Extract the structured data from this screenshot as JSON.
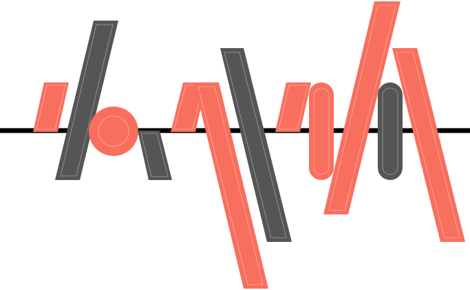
{
  "colors": {
    "background": "#ffffff",
    "baseline": "#000000",
    "coral": "#f96f5e",
    "gray": "#555555",
    "inner_line": "#ffffff"
  }
}
